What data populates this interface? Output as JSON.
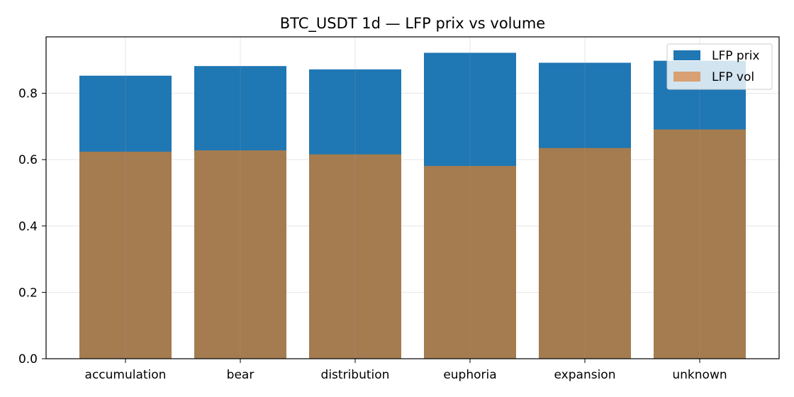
{
  "chart_data": {
    "type": "bar",
    "title": "BTC_USDT 1d — LFP prix vs volume",
    "xlabel": "",
    "ylabel": "",
    "categories": [
      "accumulation",
      "bear",
      "distribution",
      "euphoria",
      "expansion",
      "unknown"
    ],
    "series": [
      {
        "name": "LFP prix",
        "color": "#1f77b4",
        "values": [
          0.853,
          0.882,
          0.872,
          0.922,
          0.892,
          0.898
        ]
      },
      {
        "name": "LFP vol",
        "color": "#d98a4a",
        "values": [
          0.624,
          0.628,
          0.616,
          0.581,
          0.635,
          0.691
        ]
      }
    ],
    "overlap_color": "#a47c50",
    "ylim": [
      0,
      0.97
    ],
    "yticks": [
      "0.0",
      "0.2",
      "0.4",
      "0.6",
      "0.8"
    ],
    "ytick_values": [
      0,
      0.2,
      0.4,
      0.6,
      0.8
    ],
    "grid": true,
    "legend_position": "top-right"
  }
}
